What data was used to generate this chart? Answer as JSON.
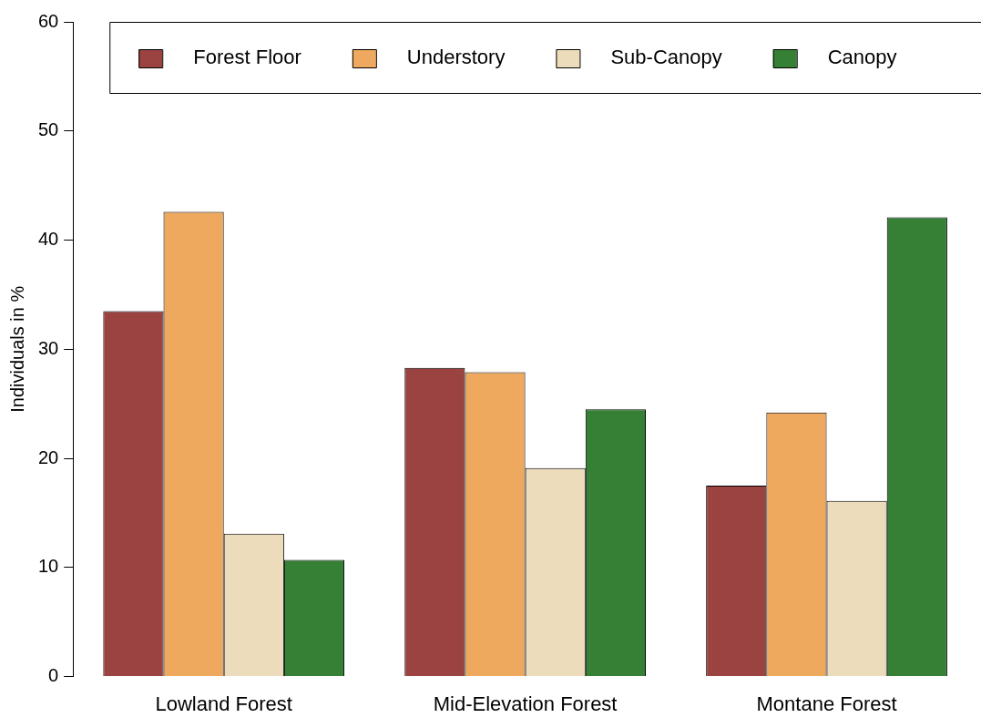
{
  "chart_data": {
    "type": "bar",
    "ylabel": "Individuals in %",
    "categories": [
      "Lowland Forest",
      "Mid-Elevation Forest",
      "Montane Forest"
    ],
    "series": [
      {
        "name": "Forest Floor",
        "color": "#9a4341",
        "values": [
          33.5,
          28.3,
          17.5
        ]
      },
      {
        "name": "Understory",
        "color": "#eea95f",
        "values": [
          42.6,
          27.9,
          24.2
        ]
      },
      {
        "name": "Sub-Canopy",
        "color": "#ecdcbb",
        "values": [
          13.1,
          19.1,
          16.1
        ]
      },
      {
        "name": "Canopy",
        "color": "#358034",
        "values": [
          10.7,
          24.5,
          42.1
        ]
      }
    ],
    "ylim": [
      0,
      60
    ],
    "yticks": [
      0,
      10,
      20,
      30,
      40,
      50,
      60
    ],
    "grid": false,
    "legend": "top"
  }
}
